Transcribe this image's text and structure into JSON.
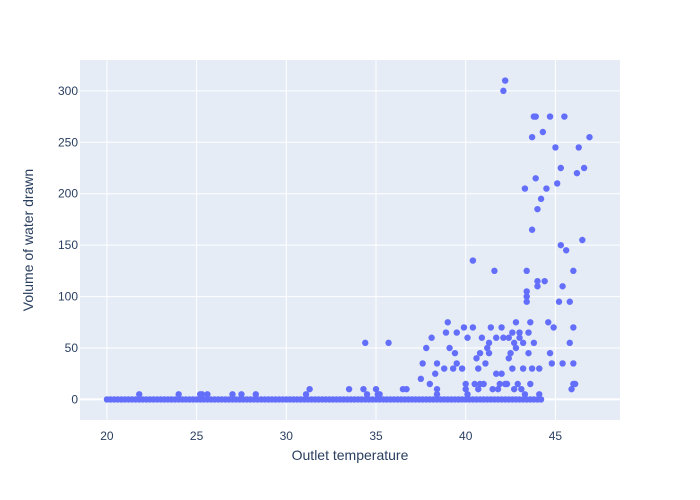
{
  "chart_data": {
    "type": "scatter",
    "title": "",
    "xlabel": "Outlet temperature",
    "ylabel": "Volume of water drawn",
    "xlim": [
      18.5,
      48.6
    ],
    "ylim": [
      -20,
      330
    ],
    "xticks": [
      20,
      25,
      30,
      35,
      40,
      45
    ],
    "yticks": [
      0,
      50,
      100,
      150,
      200,
      250,
      300
    ],
    "grid": true,
    "colors": {
      "marker": "#636efa",
      "plot_bg": "#e5ecf6",
      "grid": "#ffffff",
      "text": "#2a3f5f"
    },
    "series": [
      {
        "baseline_range": [
          20.0,
          44.2
        ],
        "baseline_value": 0,
        "points": [
          [
            21.8,
            5
          ],
          [
            24.0,
            5
          ],
          [
            25.2,
            5
          ],
          [
            25.3,
            5
          ],
          [
            25.6,
            5
          ],
          [
            27.0,
            5
          ],
          [
            27.5,
            5
          ],
          [
            28.3,
            5
          ],
          [
            31.1,
            5
          ],
          [
            31.3,
            10
          ],
          [
            33.5,
            10
          ],
          [
            34.3,
            10
          ],
          [
            34.4,
            55
          ],
          [
            34.5,
            5
          ],
          [
            35.0,
            10
          ],
          [
            35.1,
            5
          ],
          [
            35.2,
            5
          ],
          [
            35.7,
            55
          ],
          [
            36.5,
            10
          ],
          [
            36.7,
            10
          ],
          [
            37.5,
            20
          ],
          [
            37.6,
            35
          ],
          [
            37.8,
            50
          ],
          [
            38.0,
            15
          ],
          [
            38.1,
            60
          ],
          [
            38.3,
            25
          ],
          [
            38.4,
            35
          ],
          [
            38.4,
            10
          ],
          [
            38.4,
            5
          ],
          [
            38.8,
            30
          ],
          [
            38.9,
            65
          ],
          [
            39.0,
            75
          ],
          [
            39.1,
            50
          ],
          [
            39.3,
            30
          ],
          [
            39.4,
            45
          ],
          [
            39.5,
            35
          ],
          [
            39.5,
            65
          ],
          [
            39.8,
            30
          ],
          [
            39.9,
            70
          ],
          [
            40.0,
            15
          ],
          [
            40.0,
            10
          ],
          [
            40.1,
            60
          ],
          [
            40.1,
            5
          ],
          [
            40.4,
            135
          ],
          [
            40.4,
            70
          ],
          [
            40.5,
            15
          ],
          [
            40.6,
            40
          ],
          [
            40.7,
            30
          ],
          [
            40.7,
            10
          ],
          [
            40.8,
            15
          ],
          [
            40.8,
            45
          ],
          [
            40.9,
            60
          ],
          [
            41.0,
            15
          ],
          [
            41.1,
            35
          ],
          [
            41.2,
            50
          ],
          [
            41.3,
            55
          ],
          [
            41.3,
            45
          ],
          [
            41.4,
            70
          ],
          [
            41.5,
            10
          ],
          [
            41.6,
            125
          ],
          [
            41.7,
            60
          ],
          [
            41.7,
            25
          ],
          [
            41.8,
            10
          ],
          [
            41.9,
            15
          ],
          [
            42.0,
            25
          ],
          [
            42.0,
            70
          ],
          [
            42.1,
            60
          ],
          [
            42.1,
            300
          ],
          [
            42.2,
            310
          ],
          [
            42.2,
            15
          ],
          [
            42.3,
            15
          ],
          [
            42.4,
            40
          ],
          [
            42.4,
            60
          ],
          [
            42.5,
            45
          ],
          [
            42.6,
            30
          ],
          [
            42.6,
            65
          ],
          [
            42.7,
            55
          ],
          [
            42.7,
            10
          ],
          [
            42.8,
            50
          ],
          [
            42.8,
            75
          ],
          [
            42.9,
            15
          ],
          [
            43.0,
            65
          ],
          [
            43.0,
            60
          ],
          [
            43.1,
            10
          ],
          [
            43.2,
            30
          ],
          [
            43.2,
            55
          ],
          [
            43.3,
            205
          ],
          [
            43.3,
            5
          ],
          [
            43.4,
            105
          ],
          [
            43.4,
            100
          ],
          [
            43.4,
            95
          ],
          [
            43.4,
            125
          ],
          [
            43.5,
            65
          ],
          [
            43.5,
            45
          ],
          [
            43.6,
            15
          ],
          [
            43.6,
            75
          ],
          [
            43.7,
            255
          ],
          [
            43.7,
            165
          ],
          [
            43.7,
            30
          ],
          [
            43.8,
            275
          ],
          [
            43.8,
            55
          ],
          [
            43.9,
            215
          ],
          [
            43.9,
            275
          ],
          [
            44.0,
            185
          ],
          [
            44.0,
            115
          ],
          [
            44.0,
            110
          ],
          [
            44.1,
            30
          ],
          [
            44.1,
            5
          ],
          [
            44.2,
            195
          ],
          [
            44.3,
            260
          ],
          [
            44.4,
            115
          ],
          [
            44.5,
            205
          ],
          [
            44.6,
            75
          ],
          [
            44.7,
            45
          ],
          [
            44.7,
            275
          ],
          [
            44.8,
            35
          ],
          [
            44.9,
            70
          ],
          [
            45.0,
            245
          ],
          [
            45.1,
            210
          ],
          [
            45.2,
            95
          ],
          [
            45.3,
            150
          ],
          [
            45.3,
            225
          ],
          [
            45.4,
            110
          ],
          [
            45.4,
            35
          ],
          [
            45.5,
            275
          ],
          [
            45.6,
            145
          ],
          [
            45.8,
            95
          ],
          [
            45.8,
            55
          ],
          [
            45.9,
            10
          ],
          [
            46.0,
            70
          ],
          [
            46.0,
            125
          ],
          [
            46.0,
            35
          ],
          [
            46.0,
            15
          ],
          [
            46.1,
            15
          ],
          [
            46.2,
            220
          ],
          [
            46.3,
            245
          ],
          [
            46.5,
            155
          ],
          [
            46.6,
            225
          ],
          [
            46.9,
            255
          ]
        ]
      }
    ]
  }
}
